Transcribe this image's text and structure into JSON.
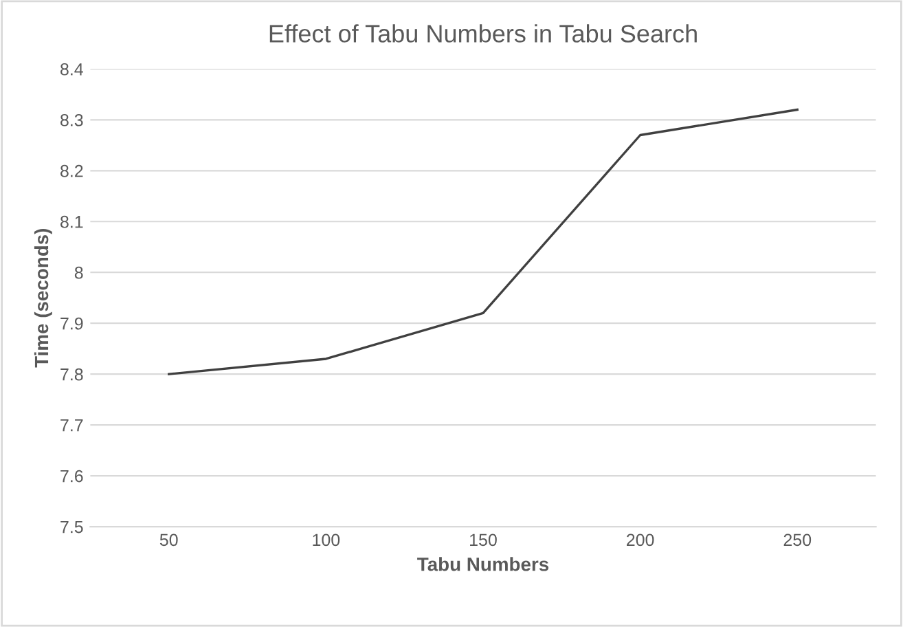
{
  "chart_data": {
    "type": "line",
    "title": "Effect of Tabu Numbers in Tabu Search",
    "xlabel": "Tabu Numbers",
    "ylabel": "Time (seconds)",
    "categories": [
      "50",
      "100",
      "150",
      "200",
      "250"
    ],
    "series": [
      {
        "color": "#404040",
        "values": [
          7.8,
          7.83,
          7.92,
          8.27,
          8.32
        ]
      }
    ],
    "ylim": [
      7.5,
      8.4
    ],
    "yticks": [
      7.5,
      7.6,
      7.7,
      7.8,
      7.9,
      8,
      8.1,
      8.2,
      8.3,
      8.4
    ],
    "grid": "y",
    "legend": false,
    "marker": "none",
    "line_style": "solid"
  }
}
